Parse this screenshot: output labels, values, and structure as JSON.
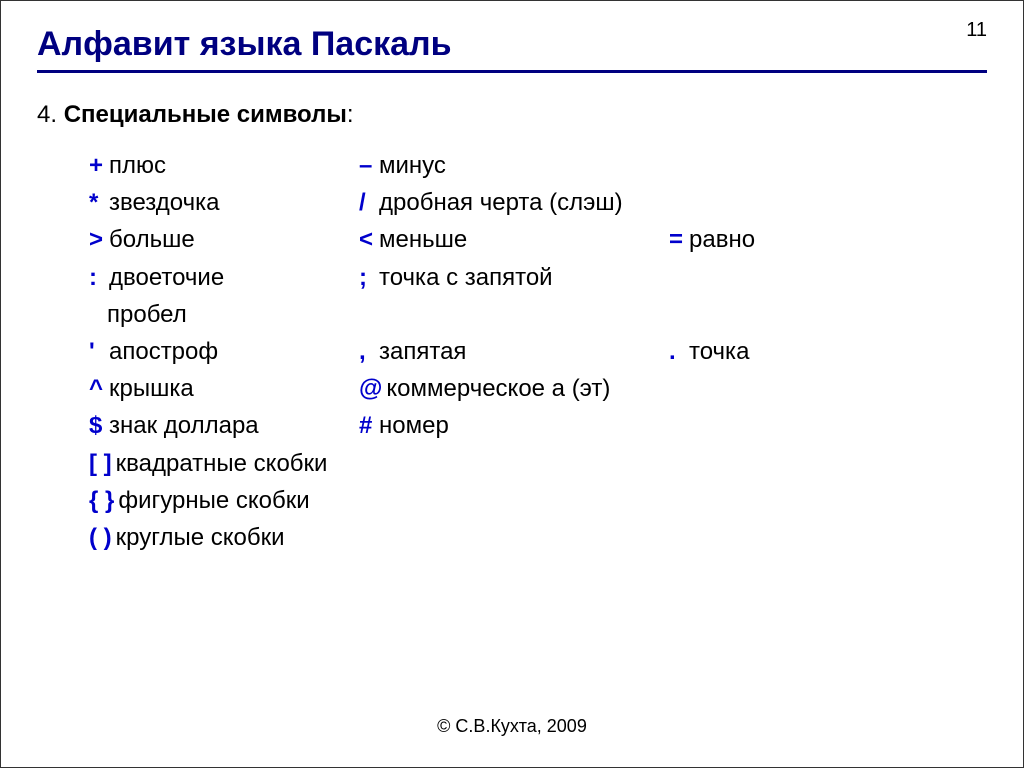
{
  "pageNumber": "11",
  "title": "Алфавит языка Паскаль",
  "section": {
    "num": "4.",
    "label": "Специальные символы",
    "colon": ":"
  },
  "rows": [
    {
      "cols": [
        {
          "sym": "+",
          "desc": "плюс"
        },
        {
          "sym": "–",
          "desc": "минус"
        }
      ]
    },
    {
      "cols": [
        {
          "sym": "*",
          "desc": "звездочка"
        },
        {
          "sym": "/",
          "desc": "дробная черта (слэш)"
        }
      ]
    },
    {
      "cols": [
        {
          "sym": ">",
          "desc": "больше"
        },
        {
          "sym": "<",
          "desc": "меньше"
        },
        {
          "sym": "=",
          "desc": "равно"
        }
      ]
    },
    {
      "cols": [
        {
          "sym": ":",
          "desc": "двоеточие"
        },
        {
          "sym": ";",
          "desc": "точка с запятой"
        }
      ]
    },
    {
      "cols": [
        {
          "sym": "",
          "desc": "пробел",
          "indent": true
        }
      ]
    },
    {
      "cols": [
        {
          "sym": "'",
          "desc": "апостроф"
        },
        {
          "sym": ",",
          "desc": "запятая"
        },
        {
          "sym": ".",
          "desc": "точка"
        }
      ]
    },
    {
      "cols": [
        {
          "sym": "^",
          "desc": "крышка"
        },
        {
          "sym": "@",
          "desc": "коммерческое а (эт)"
        }
      ]
    },
    {
      "cols": [
        {
          "sym": "$",
          "desc": "знак доллара"
        },
        {
          "sym": "#",
          "desc": "номер"
        }
      ]
    },
    {
      "cols": [
        {
          "sym": "[  ]",
          "desc": "квадратные скобки",
          "wide": true
        }
      ]
    },
    {
      "cols": [
        {
          "sym": "{  }",
          "desc": "фигурные скобки",
          "wide": true
        }
      ]
    },
    {
      "cols": [
        {
          "sym": "(  )",
          "desc": "круглые скобки",
          "wide": true
        }
      ]
    }
  ],
  "footer": "© С.В.Кухта, 2009",
  "colors": {
    "title": "#000080",
    "rule": "#000080",
    "symbol": "#0000cc",
    "text": "#000000",
    "background": "#ffffff"
  },
  "fontSizes": {
    "title": 34,
    "body": 24,
    "pageNumber": 20,
    "footer": 18
  }
}
